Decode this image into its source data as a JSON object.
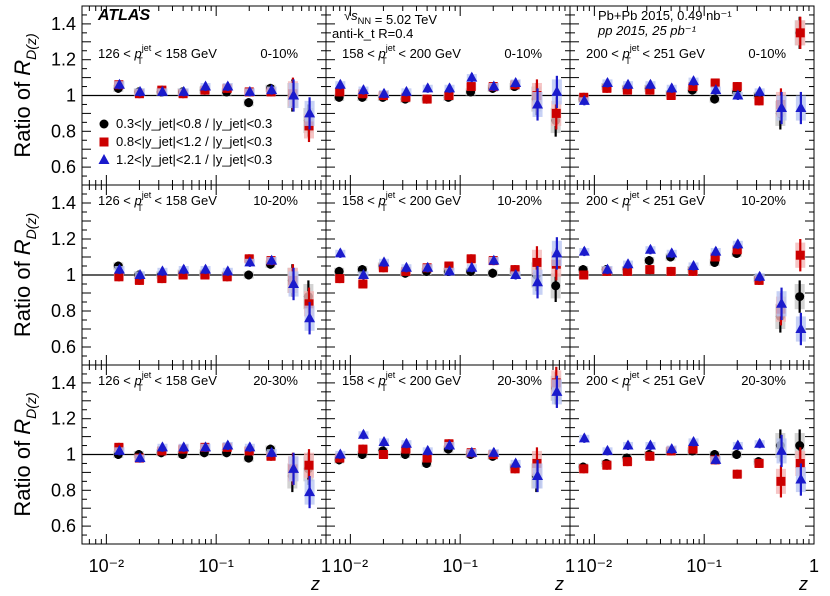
{
  "chart_data": {
    "type": "scatter",
    "title": "",
    "xlabel": "z",
    "ylabel": "Ratio of R_D(z)",
    "ylabel_main": "Ratio of R",
    "ylabel_sub": "D(z)",
    "x_scale": "log",
    "xlim": [
      0.006,
      1.0
    ],
    "ylim": [
      0.5,
      1.5
    ],
    "y_ticks": [
      "0.6",
      "0.8",
      "1",
      "1.2",
      "1.4"
    ],
    "x_tick_labels": [
      "10⁻²",
      "10⁻¹",
      "1"
    ],
    "experiment": "ATLAS",
    "info": {
      "line1": "√s_NN = 5.02 TeV",
      "line2": "anti-k_t R=0.4",
      "line3": "Pb+Pb  2015, 0.49 nb⁻¹",
      "line4": "pp  2015, 25 pb⁻¹"
    },
    "legend": [
      {
        "name": "0.3<|y_jet|<0.8 / |y_jet|<0.3",
        "color": "#000000",
        "marker": "circle"
      },
      {
        "name": "0.8<|y_jet|<1.2 / |y_jet|<0.3",
        "color": "#cc0000",
        "marker": "square"
      },
      {
        "name": "1.2<|y_jet|<2.1 / |y_jet|<0.3",
        "color": "#1a1acc",
        "marker": "triangle"
      }
    ],
    "panels": [
      {
        "pt_label": "126 < p_T^jet < 158 GeV",
        "centrality": "0-10%",
        "series": [
          {
            "name": "0.3-0.8",
            "x": [
              0.013,
              0.02,
              0.032,
              0.05,
              0.079,
              0.126,
              0.2,
              0.316,
              0.5,
              0.7
            ],
            "y": [
              1.04,
              1.02,
              1.02,
              1.02,
              1.03,
              1.02,
              0.96,
              1.04,
              1.0,
              0.86
            ]
          },
          {
            "name": "0.8-1.2",
            "x": [
              0.013,
              0.02,
              0.032,
              0.05,
              0.079,
              0.126,
              0.2,
              0.316,
              0.5,
              0.7
            ],
            "y": [
              1.06,
              1.01,
              1.03,
              1.01,
              1.03,
              1.04,
              1.02,
              1.02,
              1.01,
              0.83
            ]
          },
          {
            "name": "1.2-2.1",
            "x": [
              0.013,
              0.02,
              0.032,
              0.05,
              0.079,
              0.126,
              0.2,
              0.316,
              0.5,
              0.7
            ],
            "y": [
              1.06,
              1.02,
              1.02,
              1.02,
              1.05,
              1.05,
              1.02,
              1.03,
              1.0,
              0.9
            ]
          }
        ]
      },
      {
        "pt_label": "158 < p_T^jet < 200 GeV",
        "centrality": "0-10%",
        "series": [
          {
            "name": "0.3-0.8",
            "x": [
              0.008,
              0.013,
              0.02,
              0.032,
              0.05,
              0.079,
              0.126,
              0.2,
              0.316,
              0.5,
              0.75
            ],
            "y": [
              0.99,
              0.99,
              0.99,
              0.98,
              0.98,
              0.99,
              1.02,
              1.04,
              1.05,
              0.98,
              0.86
            ]
          },
          {
            "name": "0.8-1.2",
            "x": [
              0.008,
              0.013,
              0.02,
              0.032,
              0.05,
              0.079,
              0.126,
              0.2,
              0.316,
              0.5,
              0.75
            ],
            "y": [
              1.02,
              1.01,
              1.0,
              0.99,
              0.98,
              1.0,
              1.05,
              1.05,
              1.06,
              1.0,
              0.9
            ]
          },
          {
            "name": "1.2-2.1",
            "x": [
              0.008,
              0.013,
              0.02,
              0.032,
              0.05,
              0.079,
              0.126,
              0.2,
              0.316,
              0.5,
              0.75
            ],
            "y": [
              1.06,
              1.03,
              1.01,
              1.02,
              1.04,
              1.04,
              1.1,
              1.05,
              1.07,
              0.95,
              1.02
            ]
          }
        ]
      },
      {
        "pt_label": "200 < p_T^jet < 251 GeV",
        "centrality": "0-10%",
        "series": [
          {
            "name": "0.3-0.8",
            "x": [
              0.008,
              0.013,
              0.02,
              0.032,
              0.05,
              0.079,
              0.126,
              0.2,
              0.316,
              0.5,
              0.75
            ],
            "y": [
              0.98,
              1.05,
              1.04,
              1.04,
              1.01,
              1.03,
              0.98,
              1.02,
              1.0,
              0.9,
              1.35
            ]
          },
          {
            "name": "0.8-1.2",
            "x": [
              0.008,
              0.013,
              0.02,
              0.032,
              0.05,
              0.079,
              0.126,
              0.2,
              0.316,
              0.5,
              0.75
            ],
            "y": [
              0.99,
              1.04,
              1.03,
              1.03,
              1.0,
              1.05,
              1.07,
              1.05,
              0.97,
              0.95,
              1.35
            ]
          },
          {
            "name": "1.2-2.1",
            "x": [
              0.008,
              0.013,
              0.02,
              0.032,
              0.05,
              0.079,
              0.126,
              0.2,
              0.316,
              0.5,
              0.75
            ],
            "y": [
              0.97,
              1.07,
              1.06,
              1.06,
              1.04,
              1.08,
              1.03,
              1.0,
              1.02,
              0.93,
              0.93
            ]
          }
        ]
      },
      {
        "pt_label": "126 < p_T^jet < 158 GeV",
        "centrality": "10-20%",
        "series": [
          {
            "name": "0.3-0.8",
            "x": [
              0.013,
              0.02,
              0.032,
              0.05,
              0.079,
              0.126,
              0.2,
              0.316,
              0.5,
              0.7
            ],
            "y": [
              1.05,
              1.0,
              1.0,
              1.01,
              1.01,
              1.0,
              1.0,
              1.06,
              0.97,
              0.88
            ]
          },
          {
            "name": "0.8-1.2",
            "x": [
              0.013,
              0.02,
              0.032,
              0.05,
              0.079,
              0.126,
              0.2,
              0.316,
              0.5,
              0.7
            ],
            "y": [
              0.99,
              0.97,
              0.98,
              1.0,
              1.0,
              0.99,
              1.09,
              1.08,
              0.97,
              0.84
            ]
          },
          {
            "name": "1.2-2.1",
            "x": [
              0.013,
              0.02,
              0.032,
              0.05,
              0.079,
              0.126,
              0.2,
              0.316,
              0.5,
              0.7
            ],
            "y": [
              1.03,
              1.0,
              1.02,
              1.03,
              1.03,
              1.02,
              1.07,
              1.08,
              0.95,
              0.76
            ]
          }
        ]
      },
      {
        "pt_label": "158 < p_T^jet < 200 GeV",
        "centrality": "10-20%",
        "series": [
          {
            "name": "0.3-0.8",
            "x": [
              0.008,
              0.013,
              0.02,
              0.032,
              0.05,
              0.079,
              0.126,
              0.2,
              0.316,
              0.5,
              0.75
            ],
            "y": [
              1.02,
              1.03,
              1.05,
              1.01,
              1.02,
              1.02,
              1.02,
              1.01,
              1.02,
              1.0,
              0.94
            ]
          },
          {
            "name": "0.8-1.2",
            "x": [
              0.008,
              0.013,
              0.02,
              0.032,
              0.05,
              0.079,
              0.126,
              0.2,
              0.316,
              0.5,
              0.75
            ],
            "y": [
              0.98,
              0.95,
              1.04,
              1.02,
              1.04,
              1.05,
              1.09,
              1.08,
              1.03,
              1.07,
              1.06
            ]
          },
          {
            "name": "1.2-2.1",
            "x": [
              0.008,
              0.013,
              0.02,
              0.032,
              0.05,
              0.079,
              0.126,
              0.2,
              0.316,
              0.5,
              0.75
            ],
            "y": [
              1.12,
              1.0,
              1.07,
              1.04,
              1.04,
              1.02,
              1.04,
              1.08,
              1.0,
              0.96,
              1.12
            ]
          }
        ]
      },
      {
        "pt_label": "200 < p_T^jet < 251 GeV",
        "centrality": "10-20%",
        "series": [
          {
            "name": "0.3-0.8",
            "x": [
              0.008,
              0.013,
              0.02,
              0.032,
              0.05,
              0.079,
              0.126,
              0.2,
              0.316,
              0.5,
              0.75
            ],
            "y": [
              1.03,
              1.03,
              1.03,
              1.08,
              1.1,
              1.03,
              1.07,
              1.12,
              0.98,
              0.77,
              0.88
            ]
          },
          {
            "name": "0.8-1.2",
            "x": [
              0.008,
              0.013,
              0.02,
              0.032,
              0.05,
              0.079,
              0.126,
              0.2,
              0.316,
              0.5,
              0.75
            ],
            "y": [
              1.0,
              1.02,
              1.02,
              1.03,
              1.02,
              1.02,
              1.1,
              1.14,
              0.97,
              0.81,
              1.11
            ]
          },
          {
            "name": "1.2-2.1",
            "x": [
              0.008,
              0.013,
              0.02,
              0.032,
              0.05,
              0.079,
              0.126,
              0.2,
              0.316,
              0.5,
              0.75
            ],
            "y": [
              1.13,
              1.03,
              1.06,
              1.14,
              1.12,
              1.05,
              1.13,
              1.17,
              0.99,
              0.84,
              0.7
            ]
          }
        ]
      },
      {
        "pt_label": "126 < p_T^jet < 158 GeV",
        "centrality": "20-30%",
        "series": [
          {
            "name": "0.3-0.8",
            "x": [
              0.013,
              0.02,
              0.032,
              0.05,
              0.079,
              0.126,
              0.2,
              0.316,
              0.5,
              0.7
            ],
            "y": [
              1.0,
              1.0,
              1.01,
              1.0,
              1.01,
              1.01,
              0.98,
              1.03,
              0.88,
              0.92
            ]
          },
          {
            "name": "0.8-1.2",
            "x": [
              0.013,
              0.02,
              0.032,
              0.05,
              0.079,
              0.126,
              0.2,
              0.316,
              0.5,
              0.7
            ],
            "y": [
              1.04,
              0.98,
              1.02,
              1.03,
              1.04,
              1.04,
              1.02,
              0.99,
              0.92,
              0.94
            ]
          },
          {
            "name": "1.2-2.1",
            "x": [
              0.013,
              0.02,
              0.032,
              0.05,
              0.079,
              0.126,
              0.2,
              0.316,
              0.5,
              0.7
            ],
            "y": [
              1.02,
              0.98,
              1.04,
              1.04,
              1.04,
              1.05,
              1.04,
              1.01,
              0.92,
              0.79
            ]
          }
        ]
      },
      {
        "pt_label": "158 < p_T^jet < 200 GeV",
        "centrality": "20-30%",
        "series": [
          {
            "name": "0.3-0.8",
            "x": [
              0.008,
              0.013,
              0.02,
              0.032,
              0.05,
              0.079,
              0.126,
              0.2,
              0.316,
              0.5,
              0.75
            ],
            "y": [
              0.97,
              1.0,
              1.02,
              1.0,
              0.95,
              1.03,
              1.0,
              0.99,
              0.93,
              0.88,
              1.37
            ]
          },
          {
            "name": "0.8-1.2",
            "x": [
              0.008,
              0.013,
              0.02,
              0.032,
              0.05,
              0.079,
              0.126,
              0.2,
              0.316,
              0.5,
              0.75
            ],
            "y": [
              0.98,
              1.03,
              1.0,
              1.03,
              0.98,
              1.06,
              1.01,
              1.0,
              0.92,
              0.95,
              1.4
            ]
          },
          {
            "name": "1.2-2.1",
            "x": [
              0.008,
              0.013,
              0.02,
              0.032,
              0.05,
              0.079,
              0.126,
              0.2,
              0.316,
              0.5,
              0.75
            ],
            "y": [
              1.0,
              1.11,
              1.07,
              1.06,
              1.02,
              1.05,
              1.01,
              1.01,
              0.95,
              0.88,
              1.35
            ]
          }
        ]
      },
      {
        "pt_label": "200 < p_T^jet < 251 GeV",
        "centrality": "20-30%",
        "series": [
          {
            "name": "0.3-0.8",
            "x": [
              0.008,
              0.013,
              0.02,
              0.032,
              0.05,
              0.079,
              0.126,
              0.2,
              0.316,
              0.5,
              0.75
            ],
            "y": [
              0.93,
              0.95,
              0.98,
              1.0,
              1.02,
              1.02,
              1.0,
              1.0,
              0.96,
              1.05,
              1.05
            ]
          },
          {
            "name": "0.8-1.2",
            "x": [
              0.008,
              0.013,
              0.02,
              0.032,
              0.05,
              0.079,
              0.126,
              0.2,
              0.316,
              0.5,
              0.75
            ],
            "y": [
              0.92,
              0.94,
              0.96,
              0.99,
              1.02,
              1.03,
              0.97,
              0.89,
              0.95,
              0.85,
              0.95
            ]
          },
          {
            "name": "1.2-2.1",
            "x": [
              0.008,
              0.013,
              0.02,
              0.032,
              0.05,
              0.079,
              0.126,
              0.2,
              0.316,
              0.5,
              0.75
            ],
            "y": [
              1.09,
              1.02,
              1.05,
              1.05,
              1.03,
              1.07,
              0.97,
              1.05,
              1.06,
              1.02,
              0.86
            ]
          }
        ]
      }
    ]
  }
}
